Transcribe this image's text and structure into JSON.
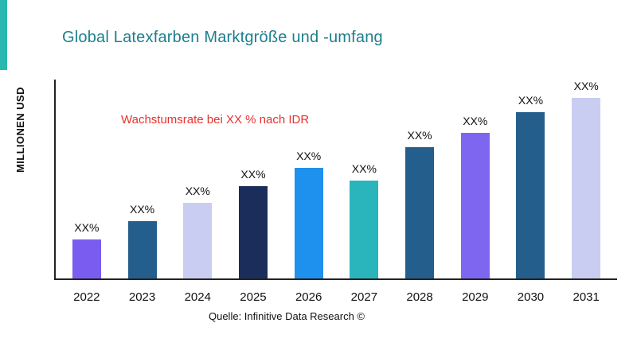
{
  "title": "Global Latexfarben Marktgröße und -umfang",
  "y_axis_label": "MILLIONEN USD",
  "annotation": "Wachstumsrate bei XX % nach IDR",
  "source": "Quelle: Infinitive Data Research ©",
  "colors": {
    "title_text": "#1b7f8e",
    "annotation_text": "#e8312e",
    "accent_stripe": "#2ab7b0",
    "axis": "#222222"
  },
  "chart_data": {
    "type": "bar",
    "title": "Global Latexfarben Marktgröße und -umfang",
    "xlabel": "",
    "ylabel": "MILLIONEN USD",
    "categories": [
      "2022",
      "2023",
      "2024",
      "2025",
      "2026",
      "2027",
      "2028",
      "2029",
      "2030",
      "2031"
    ],
    "bar_value_labels": [
      "XX%",
      "XX%",
      "XX%",
      "XX%",
      "XX%",
      "XX%",
      "XX%",
      "XX%",
      "XX%",
      "XX%"
    ],
    "values_relative_pct_of_max": [
      21,
      31,
      41,
      50,
      60,
      53,
      71,
      79,
      90,
      100
    ],
    "bar_colors": [
      "#7a5df0",
      "#245e8c",
      "#c9cdf2",
      "#1b2d5a",
      "#1e90ee",
      "#2ab5bd",
      "#245e8c",
      "#7e66f0",
      "#245e8c",
      "#c9cdf2"
    ],
    "annotation": "Wachstumsrate bei XX % nach IDR",
    "legend": "none",
    "grid": false,
    "note": "Actual numeric values not shown in source image; bars labeled XX% placeholders. values_relative_pct_of_max estimated from bar pixel heights (2031 = 100)."
  }
}
